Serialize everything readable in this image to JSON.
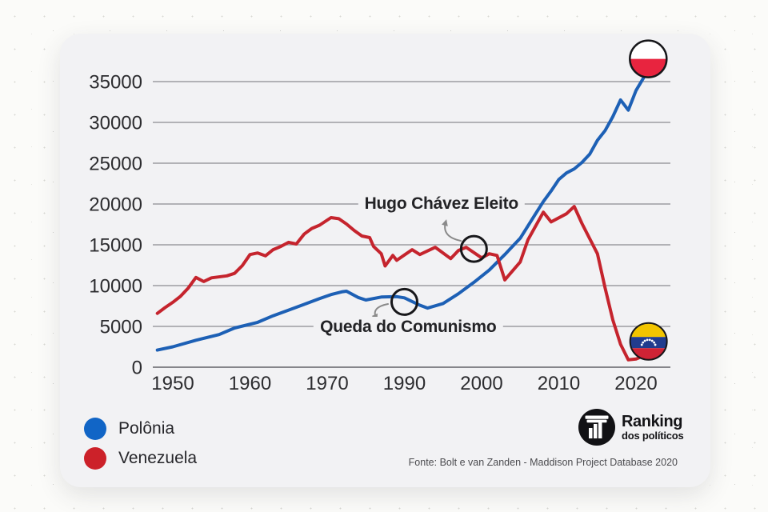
{
  "chart_data": {
    "type": "line",
    "title": "",
    "xlabel": "",
    "ylabel": "",
    "x_ticks": [
      1950,
      1960,
      1970,
      1990,
      2000,
      2010,
      2020
    ],
    "x_axis_note": "decade labels evenly spaced; 1980 label omitted",
    "y_ticks": [
      0,
      5000,
      10000,
      15000,
      20000,
      25000,
      30000,
      35000
    ],
    "ylim": [
      0,
      37500
    ],
    "grid": "horizontal",
    "legend_position": "bottom-left",
    "series": [
      {
        "name": "Polônia",
        "color": "#1d60b5",
        "end_marker": "poland-flag",
        "points": [
          [
            1948,
            2100
          ],
          [
            1950,
            2500
          ],
          [
            1953,
            3300
          ],
          [
            1956,
            4000
          ],
          [
            1958,
            4800
          ],
          [
            1961,
            5500
          ],
          [
            1963,
            6300
          ],
          [
            1965,
            7000
          ],
          [
            1967,
            7700
          ],
          [
            1969,
            8400
          ],
          [
            1971,
            8900
          ],
          [
            1974,
            9250
          ],
          [
            1975,
            9310
          ],
          [
            1978,
            8550
          ],
          [
            1980,
            8240
          ],
          [
            1984,
            8600
          ],
          [
            1988,
            8650
          ],
          [
            1990,
            8500
          ],
          [
            1992,
            7600
          ],
          [
            1993,
            7250
          ],
          [
            1995,
            7800
          ],
          [
            1997,
            9000
          ],
          [
            1999,
            10400
          ],
          [
            2001,
            11900
          ],
          [
            2003,
            13800
          ],
          [
            2005,
            15800
          ],
          [
            2007,
            18800
          ],
          [
            2008,
            20300
          ],
          [
            2009,
            21600
          ],
          [
            2010,
            23000
          ],
          [
            2011,
            23800
          ],
          [
            2012,
            24300
          ],
          [
            2013,
            25100
          ],
          [
            2014,
            26100
          ],
          [
            2015,
            27800
          ],
          [
            2016,
            29000
          ],
          [
            2017,
            30700
          ],
          [
            2018,
            32750
          ],
          [
            2019,
            31500
          ],
          [
            2020,
            33900
          ],
          [
            2021,
            35500
          ],
          [
            2022,
            37000
          ]
        ]
      },
      {
        "name": "Venezuela",
        "color": "#c5242d",
        "end_marker": "venezuela-flag",
        "points": [
          [
            1948,
            6600
          ],
          [
            1949,
            7300
          ],
          [
            1950,
            7950
          ],
          [
            1951,
            8700
          ],
          [
            1952,
            9700
          ],
          [
            1953,
            11000
          ],
          [
            1954,
            10500
          ],
          [
            1955,
            10950
          ],
          [
            1957,
            11200
          ],
          [
            1958,
            11500
          ],
          [
            1959,
            12450
          ],
          [
            1960,
            13800
          ],
          [
            1961,
            14000
          ],
          [
            1962,
            13650
          ],
          [
            1963,
            14400
          ],
          [
            1964,
            14800
          ],
          [
            1965,
            15300
          ],
          [
            1966,
            15100
          ],
          [
            1967,
            16300
          ],
          [
            1968,
            17000
          ],
          [
            1969,
            17400
          ],
          [
            1971,
            18330
          ],
          [
            1973,
            18200
          ],
          [
            1975,
            17550
          ],
          [
            1977,
            16750
          ],
          [
            1979,
            16080
          ],
          [
            1981,
            15880
          ],
          [
            1982,
            14800
          ],
          [
            1984,
            13900
          ],
          [
            1985,
            12400
          ],
          [
            1987,
            13700
          ],
          [
            1988,
            13100
          ],
          [
            1991,
            14400
          ],
          [
            1992,
            13800
          ],
          [
            1994,
            14700
          ],
          [
            1996,
            13300
          ],
          [
            1997,
            14300
          ],
          [
            1998,
            14700
          ],
          [
            2000,
            13400
          ],
          [
            2001,
            13900
          ],
          [
            2002,
            13700
          ],
          [
            2003,
            10700
          ],
          [
            2005,
            12900
          ],
          [
            2006,
            15600
          ],
          [
            2008,
            19000
          ],
          [
            2009,
            17800
          ],
          [
            2011,
            18800
          ],
          [
            2012,
            19700
          ],
          [
            2013,
            17600
          ],
          [
            2015,
            13900
          ],
          [
            2016,
            9700
          ],
          [
            2017,
            5800
          ],
          [
            2018,
            2800
          ],
          [
            2019,
            900
          ],
          [
            2020,
            1000
          ],
          [
            2021,
            1400
          ]
        ]
      }
    ],
    "annotations": [
      {
        "text": "Hugo Chávez Eleito",
        "series": "Venezuela",
        "circle": {
          "year": 1999,
          "value": 14500
        },
        "label": {
          "year": 1994.8,
          "value": 20000
        }
      },
      {
        "text": "Queda do Comunismo",
        "series": "Polônia",
        "circle": {
          "year": 1990,
          "value": 8000
        },
        "label": {
          "year": 1990.5,
          "value": 4950
        }
      }
    ]
  },
  "legend": {
    "items": [
      {
        "label": "Polônia",
        "color": "#1165c6"
      },
      {
        "label": "Venezuela",
        "color": "#cc2129"
      }
    ]
  },
  "brand": {
    "line1": "Ranking",
    "line2": "dos políticos"
  },
  "source": {
    "text": "Fonte: Bolt e van Zanden - Maddison Project Database 2020"
  },
  "flags": {
    "poland": {
      "name": "poland-flag",
      "white": "#ffffff",
      "red": "#e8243f"
    },
    "venezuela": {
      "name": "venezuela-flag",
      "yellow": "#f2c500",
      "blue": "#203c8e",
      "red": "#cf2335"
    }
  },
  "colors": {
    "card": "#f2f2f4",
    "grid": "#9c9ca1",
    "axis_zero": "#86868b",
    "axis_text": "#2c2c2f",
    "annotation_stroke": "#17171a",
    "arrow": "#8a8a8a"
  }
}
